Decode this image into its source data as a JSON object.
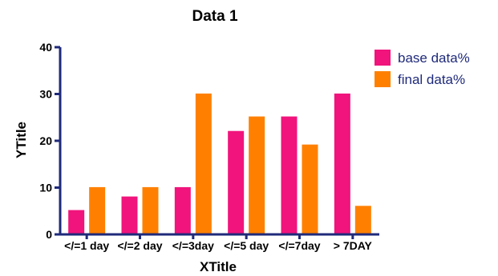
{
  "chart_data": {
    "type": "bar",
    "title": "Data 1",
    "xlabel": "XTitle",
    "ylabel": "YTitle",
    "ylim": [
      0,
      40
    ],
    "yticks": [
      0,
      10,
      20,
      30,
      40
    ],
    "categories": [
      "</=1 day",
      "</=2 day",
      "</=3day",
      "</=5 day",
      "</=7day",
      "> 7DAY"
    ],
    "series": [
      {
        "name": "base data%",
        "color": "#f0147c",
        "values": [
          5.2,
          8.1,
          10.1,
          22.1,
          25.2,
          30.1
        ]
      },
      {
        "name": "final data%",
        "color": "#ff8000",
        "values": [
          10.1,
          10.1,
          30.1,
          25.2,
          19.2,
          6.1
        ]
      }
    ],
    "legend_position": "top-right",
    "grid": false,
    "axis_color": "#1f2a7a"
  }
}
